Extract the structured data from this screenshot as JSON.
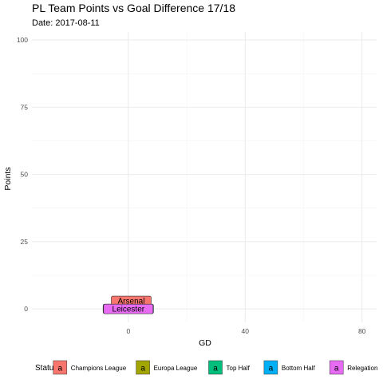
{
  "chart_data": {
    "type": "scatter",
    "title": "PL Team Points vs Goal Difference 17/18",
    "subtitle": "Date: 2017-08-11",
    "xlabel": "GD",
    "ylabel": "Points",
    "xlim": [
      -33,
      85
    ],
    "ylim": [
      -5,
      103
    ],
    "x_ticks": [
      0,
      40,
      80
    ],
    "y_ticks": [
      0,
      25,
      50,
      75,
      100
    ],
    "grid": true,
    "legend": {
      "title": "Status",
      "position": "bottom",
      "key_letter": "a",
      "items": [
        {
          "label": "Champions League",
          "color": "#F8766D"
        },
        {
          "label": "Europa League",
          "color": "#A3A500"
        },
        {
          "label": "Top Half",
          "color": "#00BF7D"
        },
        {
          "label": "Bottom Half",
          "color": "#00B0F6"
        },
        {
          "label": "Relegation",
          "color": "#E76BF3"
        }
      ]
    },
    "labels": [
      {
        "text": "",
        "x": -7,
        "y": 0,
        "status": "Top Half"
      },
      {
        "text": "",
        "x": 7,
        "y": 0,
        "status": "Bottom Half"
      },
      {
        "text": "Arsenal",
        "x": 1,
        "y": 3,
        "status": "Champions League"
      },
      {
        "text": "Leicester",
        "x": 0,
        "y": 0,
        "status": "Relegation"
      }
    ]
  }
}
